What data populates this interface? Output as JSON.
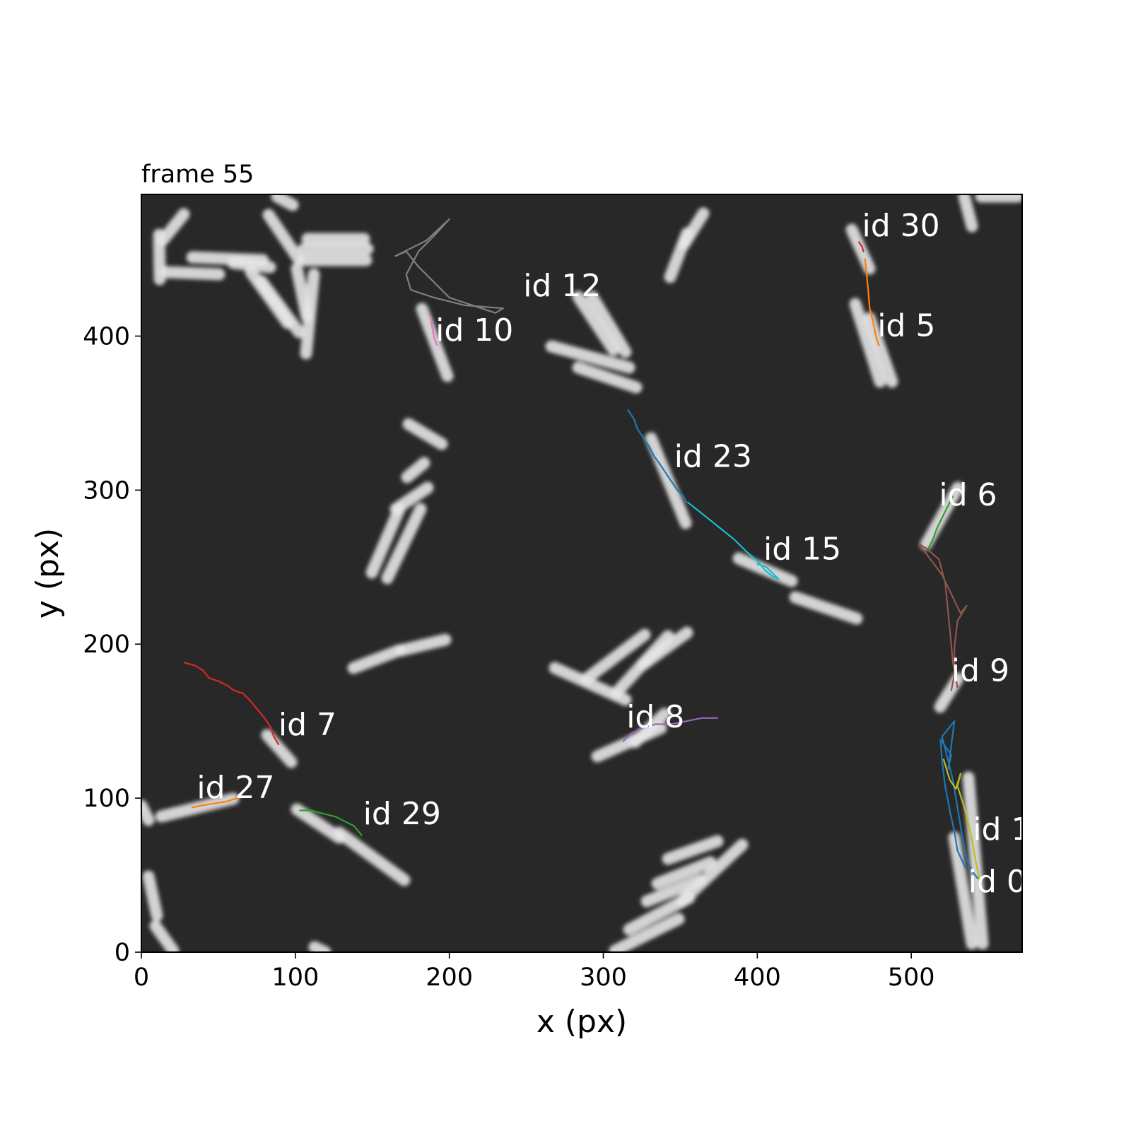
{
  "title": "frame 55",
  "chart_data": {
    "type": "line",
    "background": "microscopy image of rod-shaped cells",
    "xlabel": "x (px)",
    "ylabel": "y (px)",
    "xlim": [
      0,
      572
    ],
    "ylim": [
      0,
      492
    ],
    "xticks": [
      0,
      100,
      200,
      300,
      400,
      500
    ],
    "yticks": [
      0,
      100,
      200,
      300,
      400
    ],
    "series": [
      {
        "name": "id 0",
        "color": "#1f77b4",
        "label_at": [
          537,
          39
        ],
        "points": [
          [
            535,
            55
          ],
          [
            530,
            66
          ],
          [
            528,
            78
          ],
          [
            525,
            92
          ],
          [
            522,
            108
          ],
          [
            520,
            124
          ],
          [
            519,
            138
          ],
          [
            526,
            128
          ],
          [
            524,
            119
          ],
          [
            528,
            150
          ],
          [
            520,
            140
          ],
          [
            527,
            112
          ],
          [
            530,
            94
          ],
          [
            533,
            76
          ],
          [
            536,
            60
          ],
          [
            540,
            52
          ],
          [
            543,
            48
          ]
        ]
      },
      {
        "name": "id 1",
        "color": "#bcbd22",
        "label_at": [
          540,
          73
        ],
        "points": [
          [
            521,
            125
          ],
          [
            525,
            112
          ],
          [
            529,
            106
          ],
          [
            532,
            116
          ],
          [
            530,
            108
          ],
          [
            535,
            92
          ],
          [
            538,
            80
          ],
          [
            540,
            70
          ],
          [
            542,
            58
          ],
          [
            544,
            48
          ],
          [
            545,
            40
          ]
        ]
      },
      {
        "name": "id 5",
        "color": "#ff7f0e",
        "label_at": [
          478,
          400
        ],
        "points": [
          [
            470,
            450
          ],
          [
            471,
            440
          ],
          [
            472,
            430
          ],
          [
            473,
            418
          ],
          [
            475,
            410
          ],
          [
            477,
            400
          ],
          [
            479,
            394
          ]
        ]
      },
      {
        "name": "id 6",
        "color": "#2ca02c",
        "label_at": [
          518,
          290
        ],
        "points": [
          [
            511,
            262
          ],
          [
            514,
            268
          ],
          [
            517,
            276
          ],
          [
            520,
            282
          ],
          [
            524,
            290
          ],
          [
            527,
            296
          ]
        ]
      },
      {
        "name": "id 7",
        "color": "#d62728",
        "label_at": [
          89,
          141
        ],
        "points": [
          [
            28,
            188
          ],
          [
            35,
            186
          ],
          [
            40,
            183
          ],
          [
            44,
            178
          ],
          [
            50,
            176
          ],
          [
            56,
            173
          ],
          [
            60,
            170
          ],
          [
            66,
            168
          ],
          [
            70,
            164
          ],
          [
            75,
            158
          ],
          [
            80,
            152
          ],
          [
            84,
            146
          ],
          [
            86,
            140
          ],
          [
            89,
            135
          ]
        ]
      },
      {
        "name": "id 8",
        "color": "#9467bd",
        "label_at": [
          315,
          146
        ],
        "points": [
          [
            313,
            137
          ],
          [
            318,
            142
          ],
          [
            326,
            146
          ],
          [
            334,
            148
          ],
          [
            344,
            148
          ],
          [
            354,
            150
          ],
          [
            364,
            152
          ],
          [
            374,
            152
          ]
        ]
      },
      {
        "name": "id 9",
        "color": "#8c564b",
        "label_at": [
          526,
          176
        ],
        "points": [
          [
            530,
            172
          ],
          [
            527,
            188
          ],
          [
            525,
            210
          ],
          [
            522,
            240
          ],
          [
            518,
            255
          ],
          [
            510,
            262
          ],
          [
            505,
            265
          ],
          [
            520,
            245
          ],
          [
            532,
            220
          ],
          [
            536,
            225
          ],
          [
            530,
            215
          ],
          [
            528,
            198
          ],
          [
            528,
            180
          ],
          [
            526,
            170
          ]
        ]
      },
      {
        "name": "id 10",
        "color": "#e377c2",
        "label_at": [
          191,
          397
        ],
        "points": [
          [
            188,
            412
          ],
          [
            189,
            405
          ],
          [
            190,
            399
          ],
          [
            192,
            394
          ]
        ]
      },
      {
        "name": "id 12",
        "color": "#7f7f7f",
        "label_at": [
          248,
          426
        ],
        "points": [
          [
            200,
            476
          ],
          [
            190,
            465
          ],
          [
            180,
            455
          ],
          [
            172,
            440
          ],
          [
            175,
            430
          ],
          [
            190,
            425
          ],
          [
            210,
            420
          ],
          [
            235,
            418
          ],
          [
            230,
            415
          ],
          [
            200,
            425
          ],
          [
            180,
            445
          ],
          [
            172,
            455
          ],
          [
            165,
            452
          ],
          [
            185,
            462
          ],
          [
            200,
            476
          ]
        ]
      },
      {
        "name": "id 15",
        "color": "#17becf",
        "label_at": [
          404,
          255
        ],
        "points": [
          [
            355,
            292
          ],
          [
            365,
            284
          ],
          [
            375,
            276
          ],
          [
            385,
            268
          ],
          [
            393,
            260
          ],
          [
            400,
            254
          ],
          [
            405,
            248
          ],
          [
            410,
            244
          ],
          [
            414,
            242
          ],
          [
            406,
            250
          ],
          [
            400,
            252
          ]
        ]
      },
      {
        "name": "id 23",
        "color": "#1f77b4",
        "label_at": [
          346,
          315
        ],
        "points": [
          [
            316,
            352
          ],
          [
            320,
            346
          ],
          [
            322,
            340
          ],
          [
            326,
            334
          ],
          [
            330,
            328
          ],
          [
            333,
            322
          ],
          [
            336,
            318
          ],
          [
            340,
            312
          ],
          [
            344,
            306
          ],
          [
            348,
            300
          ],
          [
            352,
            296
          ],
          [
            354,
            292
          ]
        ]
      },
      {
        "name": "id 27",
        "color": "#ff7f0e",
        "label_at": [
          36,
          100
        ],
        "points": [
          [
            33,
            94
          ],
          [
            38,
            95
          ],
          [
            44,
            96
          ],
          [
            50,
            97
          ],
          [
            56,
            98
          ],
          [
            62,
            100
          ],
          [
            66,
            101
          ]
        ]
      },
      {
        "name": "id 29",
        "color": "#2ca02c",
        "label_at": [
          144,
          83
        ],
        "points": [
          [
            103,
            92
          ],
          [
            110,
            92
          ],
          [
            118,
            90
          ],
          [
            126,
            88
          ],
          [
            132,
            85
          ],
          [
            138,
            82
          ],
          [
            143,
            76
          ]
        ]
      },
      {
        "name": "id 30",
        "color": "#d62728",
        "label_at": [
          468,
          465
        ],
        "points": [
          [
            466,
            461
          ],
          [
            468,
            458
          ],
          [
            469,
            455
          ]
        ]
      }
    ]
  }
}
